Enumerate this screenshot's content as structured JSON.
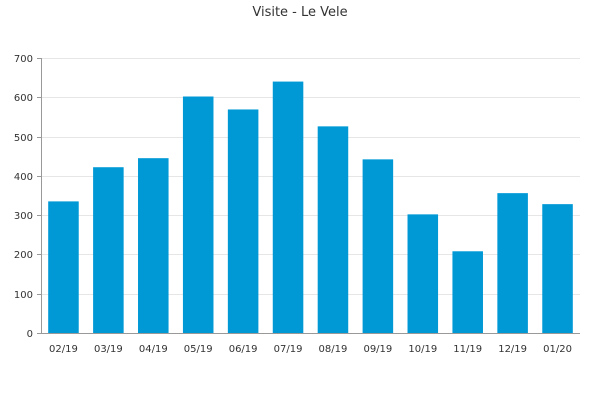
{
  "chart_data": {
    "type": "bar",
    "title": "Visite - Le Vele",
    "categories": [
      "02/19",
      "03/19",
      "04/19",
      "05/19",
      "06/19",
      "07/19",
      "08/19",
      "09/19",
      "10/19",
      "11/19",
      "12/19",
      "01/20"
    ],
    "values": [
      335,
      422,
      445,
      602,
      569,
      640,
      526,
      442,
      302,
      208,
      356,
      328
    ],
    "ylim": [
      0,
      700
    ],
    "yticks": [
      0,
      100,
      200,
      300,
      400,
      500,
      600,
      700
    ],
    "grid": true,
    "bar_color": "#0099d6"
  }
}
